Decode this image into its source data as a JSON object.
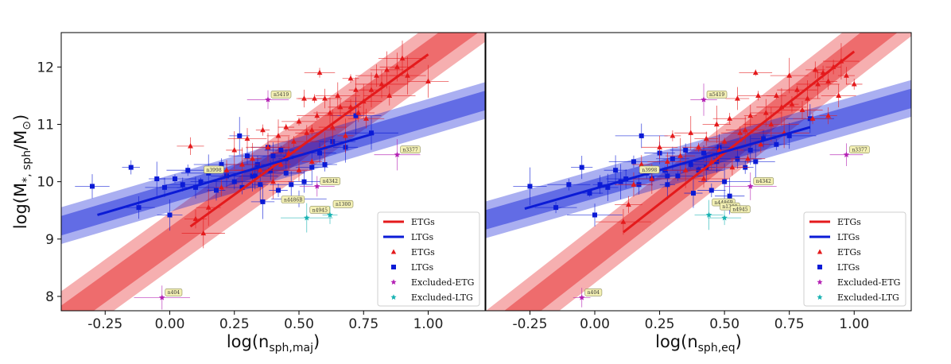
{
  "chart_data": [
    {
      "type": "scatter",
      "panel": "left",
      "xlabel": "log(n_sph, maj)",
      "ylabel": "log(M*, sph/M⊙)",
      "xlim": [
        -0.42,
        1.22
      ],
      "ylim": [
        7.75,
        12.6
      ],
      "xticks": [
        "-0.25",
        "0.00",
        "0.25",
        "0.50",
        "0.75",
        "1.00"
      ],
      "yticks": [
        "8",
        "9",
        "10",
        "11",
        "12"
      ],
      "xtick_values": [
        -0.25,
        0.0,
        0.25,
        0.5,
        0.75,
        1.0
      ],
      "ytick_values": [
        8,
        9,
        10,
        11,
        12
      ],
      "fits": [
        {
          "name": "ETGs",
          "color": "#e41a1c",
          "x": [
            0.08,
            1.0
          ],
          "y": [
            9.22,
            12.22
          ],
          "slope": 3.26,
          "band_inner": 0.25,
          "band_outer": 0.5
        },
        {
          "name": "LTGs",
          "color": "#0b1bd6",
          "x": [
            -0.28,
            0.79
          ],
          "y": [
            9.42,
            10.84
          ],
          "slope": 1.33,
          "band_inner": 0.17,
          "band_outer": 0.32
        }
      ],
      "etg_points": [
        [
          0.08,
          10.62
        ],
        [
          0.1,
          9.35
        ],
        [
          0.13,
          9.1
        ],
        [
          0.15,
          9.55
        ],
        [
          0.2,
          9.9
        ],
        [
          0.22,
          10.2
        ],
        [
          0.25,
          10.55
        ],
        [
          0.28,
          10.3
        ],
        [
          0.3,
          10.75
        ],
        [
          0.32,
          10.4
        ],
        [
          0.35,
          10.2
        ],
        [
          0.36,
          10.9
        ],
        [
          0.38,
          10.6
        ],
        [
          0.4,
          10.0
        ],
        [
          0.42,
          10.8
        ],
        [
          0.43,
          10.3
        ],
        [
          0.45,
          10.95
        ],
        [
          0.46,
          10.5
        ],
        [
          0.48,
          10.7
        ],
        [
          0.5,
          11.05
        ],
        [
          0.5,
          10.2
        ],
        [
          0.52,
          11.45
        ],
        [
          0.53,
          10.85
        ],
        [
          0.55,
          10.9
        ],
        [
          0.55,
          10.35
        ],
        [
          0.57,
          11.15
        ],
        [
          0.58,
          11.9
        ],
        [
          0.6,
          11.45
        ],
        [
          0.6,
          10.6
        ],
        [
          0.62,
          11.2
        ],
        [
          0.63,
          10.95
        ],
        [
          0.65,
          11.5
        ],
        [
          0.66,
          11.3
        ],
        [
          0.68,
          10.8
        ],
        [
          0.7,
          11.8
        ],
        [
          0.7,
          11.3
        ],
        [
          0.72,
          11.6
        ],
        [
          0.73,
          11.2
        ],
        [
          0.75,
          11.4
        ],
        [
          0.76,
          11.1
        ],
        [
          0.78,
          11.6
        ],
        [
          0.8,
          11.85
        ],
        [
          0.82,
          11.7
        ],
        [
          0.84,
          11.95
        ],
        [
          0.85,
          11.5
        ],
        [
          0.88,
          12.0
        ],
        [
          0.9,
          12.15
        ],
        [
          0.92,
          11.85
        ],
        [
          1.0,
          11.75
        ],
        [
          0.56,
          11.45
        ]
      ],
      "ltg_points": [
        [
          -0.3,
          9.92
        ],
        [
          -0.15,
          10.25
        ],
        [
          -0.12,
          9.55
        ],
        [
          -0.05,
          10.05
        ],
        [
          -0.02,
          9.9
        ],
        [
          0.0,
          9.42
        ],
        [
          0.02,
          10.05
        ],
        [
          0.05,
          9.95
        ],
        [
          0.07,
          10.2
        ],
        [
          0.1,
          9.9
        ],
        [
          0.12,
          10.0
        ],
        [
          0.15,
          10.15
        ],
        [
          0.18,
          9.85
        ],
        [
          0.2,
          10.3
        ],
        [
          0.22,
          10.1
        ],
        [
          0.25,
          10.0
        ],
        [
          0.27,
          10.8
        ],
        [
          0.28,
          9.9
        ],
        [
          0.3,
          10.45
        ],
        [
          0.32,
          10.1
        ],
        [
          0.34,
          10.3
        ],
        [
          0.35,
          9.95
        ],
        [
          0.36,
          9.65
        ],
        [
          0.38,
          10.6
        ],
        [
          0.39,
          10.2
        ],
        [
          0.4,
          10.45
        ],
        [
          0.42,
          9.85
        ],
        [
          0.43,
          10.55
        ],
        [
          0.45,
          10.4
        ],
        [
          0.47,
          9.95
        ],
        [
          0.5,
          9.7
        ],
        [
          0.52,
          10.0
        ],
        [
          0.55,
          10.25
        ],
        [
          0.58,
          10.5
        ],
        [
          0.6,
          10.3
        ],
        [
          0.63,
          10.7
        ],
        [
          0.68,
          10.6
        ],
        [
          0.72,
          11.15
        ],
        [
          0.78,
          10.85
        ],
        [
          0.33,
          10.1
        ],
        [
          0.45,
          10.15
        ]
      ],
      "excluded_etg": [
        [
          -0.03,
          7.98
        ],
        [
          0.38,
          11.43
        ],
        [
          0.88,
          10.47
        ],
        [
          0.57,
          9.92
        ]
      ],
      "excluded_ltg": [
        [
          0.53,
          9.37
        ],
        [
          0.62,
          9.42
        ]
      ],
      "annotations": [
        {
          "text": "n404",
          "x": -0.03,
          "y": 7.98
        },
        {
          "text": "n5419",
          "x": 0.38,
          "y": 11.43
        },
        {
          "text": "n3377",
          "x": 0.88,
          "y": 10.47
        },
        {
          "text": "n3998",
          "x": 0.12,
          "y": 10.12
        },
        {
          "text": "n4342",
          "x": 0.57,
          "y": 9.92
        },
        {
          "text": "n4486B",
          "x": 0.42,
          "y": 9.6
        },
        {
          "text": "n4945",
          "x": 0.53,
          "y": 9.42
        },
        {
          "text": "n1300",
          "x": 0.62,
          "y": 9.52
        }
      ]
    },
    {
      "type": "scatter",
      "panel": "right",
      "xlabel": "log(n_sph, eq)",
      "ylabel": "",
      "xlim": [
        -0.42,
        1.22
      ],
      "ylim": [
        7.75,
        12.6
      ],
      "xticks": [
        "-0.25",
        "0.00",
        "0.25",
        "0.50",
        "0.75",
        "1.00"
      ],
      "yticks": [],
      "xtick_values": [
        -0.25,
        0.0,
        0.25,
        0.5,
        0.75,
        1.0
      ],
      "ytick_values": [],
      "fits": [
        {
          "name": "ETGs",
          "color": "#e41a1c",
          "x": [
            0.11,
            1.0
          ],
          "y": [
            9.12,
            12.27
          ],
          "slope": 3.53,
          "band_inner": 0.25,
          "band_outer": 0.5
        },
        {
          "name": "LTGs",
          "color": "#0b1bd6",
          "x": [
            -0.27,
            0.83
          ],
          "y": [
            9.53,
            10.95
          ],
          "slope": 1.29,
          "band_inner": 0.17,
          "band_outer": 0.32
        }
      ],
      "etg_points": [
        [
          0.11,
          9.3
        ],
        [
          0.13,
          9.6
        ],
        [
          0.15,
          9.95
        ],
        [
          0.18,
          10.3
        ],
        [
          0.22,
          10.05
        ],
        [
          0.25,
          10.6
        ],
        [
          0.28,
          10.35
        ],
        [
          0.3,
          10.8
        ],
        [
          0.33,
          10.45
        ],
        [
          0.35,
          10.2
        ],
        [
          0.37,
          10.85
        ],
        [
          0.4,
          10.6
        ],
        [
          0.42,
          10.05
        ],
        [
          0.43,
          10.75
        ],
        [
          0.45,
          10.35
        ],
        [
          0.47,
          11.0
        ],
        [
          0.48,
          10.55
        ],
        [
          0.5,
          10.7
        ],
        [
          0.52,
          11.1
        ],
        [
          0.53,
          10.25
        ],
        [
          0.55,
          11.45
        ],
        [
          0.56,
          10.85
        ],
        [
          0.58,
          10.9
        ],
        [
          0.59,
          10.4
        ],
        [
          0.6,
          11.15
        ],
        [
          0.62,
          11.9
        ],
        [
          0.63,
          11.5
        ],
        [
          0.64,
          10.65
        ],
        [
          0.66,
          11.2
        ],
        [
          0.68,
          11.0
        ],
        [
          0.7,
          11.5
        ],
        [
          0.72,
          11.3
        ],
        [
          0.73,
          10.85
        ],
        [
          0.75,
          11.85
        ],
        [
          0.76,
          11.35
        ],
        [
          0.78,
          11.6
        ],
        [
          0.8,
          11.25
        ],
        [
          0.82,
          11.45
        ],
        [
          0.84,
          11.1
        ],
        [
          0.86,
          11.7
        ],
        [
          0.88,
          11.9
        ],
        [
          0.9,
          11.75
        ],
        [
          0.92,
          12.0
        ],
        [
          0.94,
          11.5
        ],
        [
          0.95,
          12.1
        ],
        [
          0.97,
          11.85
        ],
        [
          1.0,
          11.7
        ],
        [
          0.85,
          11.95
        ],
        [
          0.9,
          11.15
        ]
      ],
      "ltg_points": [
        [
          -0.25,
          9.92
        ],
        [
          -0.15,
          9.55
        ],
        [
          -0.1,
          9.95
        ],
        [
          -0.05,
          10.25
        ],
        [
          -0.02,
          9.8
        ],
        [
          0.0,
          9.42
        ],
        [
          0.02,
          9.95
        ],
        [
          0.05,
          9.9
        ],
        [
          0.08,
          10.2
        ],
        [
          0.1,
          10.0
        ],
        [
          0.12,
          10.05
        ],
        [
          0.15,
          10.35
        ],
        [
          0.17,
          9.95
        ],
        [
          0.18,
          10.8
        ],
        [
          0.2,
          10.15
        ],
        [
          0.22,
          10.05
        ],
        [
          0.25,
          10.5
        ],
        [
          0.27,
          10.2
        ],
        [
          0.28,
          9.95
        ],
        [
          0.3,
          10.4
        ],
        [
          0.32,
          10.1
        ],
        [
          0.35,
          10.55
        ],
        [
          0.37,
          10.3
        ],
        [
          0.38,
          9.8
        ],
        [
          0.4,
          10.2
        ],
        [
          0.42,
          10.5
        ],
        [
          0.45,
          9.85
        ],
        [
          0.47,
          10.35
        ],
        [
          0.48,
          10.6
        ],
        [
          0.5,
          10.0
        ],
        [
          0.52,
          9.75
        ],
        [
          0.55,
          10.4
        ],
        [
          0.58,
          10.25
        ],
        [
          0.6,
          10.55
        ],
        [
          0.62,
          10.35
        ],
        [
          0.65,
          10.75
        ],
        [
          0.7,
          10.65
        ],
        [
          0.75,
          10.8
        ],
        [
          0.83,
          11.1
        ],
        [
          0.28,
          10.1
        ],
        [
          0.43,
          10.25
        ]
      ],
      "excluded_etg": [
        [
          -0.05,
          7.98
        ],
        [
          0.42,
          11.43
        ],
        [
          0.97,
          10.47
        ],
        [
          0.6,
          9.92
        ]
      ],
      "excluded_ltg": [
        [
          0.44,
          9.42
        ],
        [
          0.5,
          9.37
        ]
      ],
      "annotations": [
        {
          "text": "n404",
          "x": -0.05,
          "y": 7.98
        },
        {
          "text": "n5419",
          "x": 0.42,
          "y": 11.43
        },
        {
          "text": "n3377",
          "x": 0.97,
          "y": 10.47
        },
        {
          "text": "n3998",
          "x": 0.16,
          "y": 10.12
        },
        {
          "text": "n4342",
          "x": 0.6,
          "y": 9.92
        },
        {
          "text": "n4486B",
          "x": 0.44,
          "y": 9.55
        },
        {
          "text": "n1300",
          "x": 0.47,
          "y": 9.48
        },
        {
          "text": "n4945",
          "x": 0.51,
          "y": 9.43
        }
      ]
    }
  ],
  "legend": {
    "placement": "bottom-right",
    "entries": [
      {
        "label": "ETGs",
        "kind": "line",
        "color": "#e41a1c"
      },
      {
        "label": "LTGs",
        "kind": "line",
        "color": "#0b1bd6"
      },
      {
        "label": "ETGs",
        "kind": "triangle",
        "color": "#e41a1c"
      },
      {
        "label": "LTGs",
        "kind": "square",
        "color": "#0b1bd6"
      },
      {
        "label": "Excluded-ETG",
        "kind": "star",
        "color": "#b422b4"
      },
      {
        "label": "Excluded-LTG",
        "kind": "star",
        "color": "#1ab3b3"
      }
    ]
  }
}
